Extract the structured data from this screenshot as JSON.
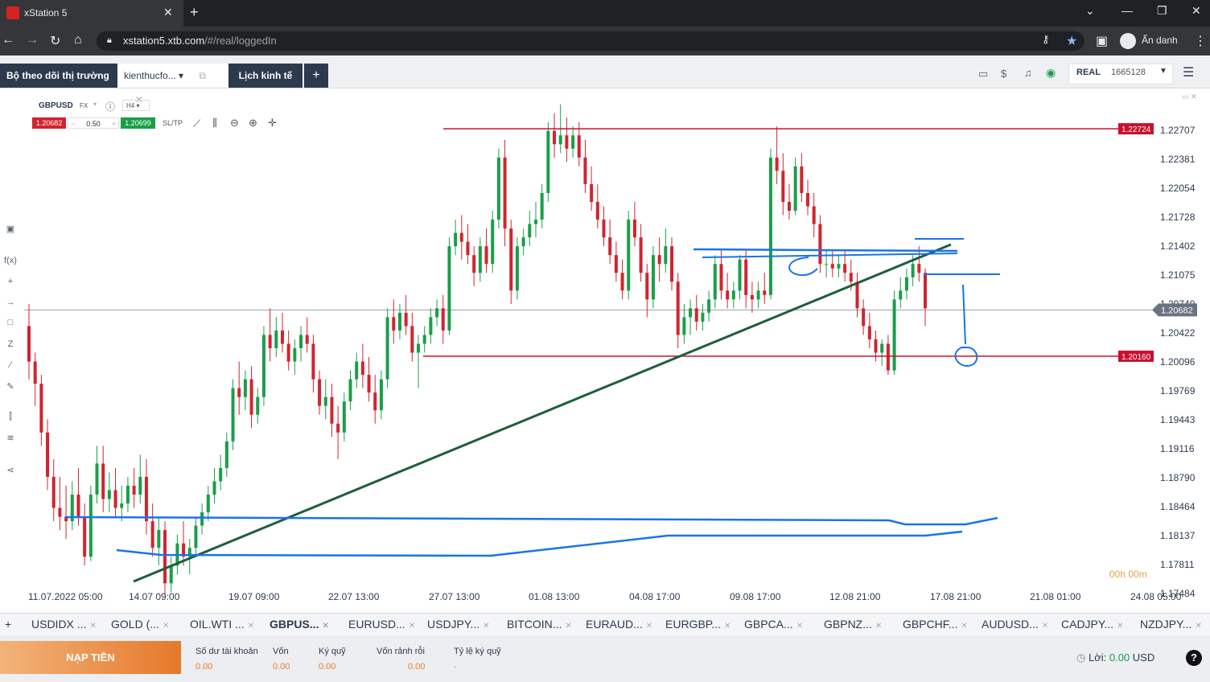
{
  "browser": {
    "tab_title": "xStation 5",
    "url_host": "xstation5.xtb.com",
    "url_path": "/#/real/loggedIn",
    "profile_label": "Ẩn danh"
  },
  "app": {
    "tabs": {
      "watchlist": "Bộ theo dõi thị trường",
      "workspace": "kienthucfo...",
      "calendar": "Lịch kinh tế"
    },
    "account": {
      "type": "REAL",
      "number": "1665128"
    }
  },
  "chart_header": {
    "symbol": "GBPUSD",
    "market": "FX",
    "timeframe": "H4",
    "sell_price": "1.20682",
    "volume": "0.50",
    "buy_price": "1.20699",
    "sltp_label": "SL/TP"
  },
  "chart_data": {
    "type": "candlestick",
    "price_axis": [
      "1.22707",
      "1.22381",
      "1.22054",
      "1.21728",
      "1.21402",
      "1.21075",
      "1.20749",
      "1.20422",
      "1.20096",
      "1.19769",
      "1.19443",
      "1.19116",
      "1.18790",
      "1.18464",
      "1.18137",
      "1.17811",
      "1.17484"
    ],
    "time_axis": [
      "11.07.2022 05:00",
      "14.07 09:00",
      "19.07 09:00",
      "22.07 13:00",
      "27.07 13:00",
      "01.08 13:00",
      "04.08 17:00",
      "09.08 17:00",
      "12.08 21:00",
      "17.08 21:00",
      "21.08 01:00",
      "24.08 05:00"
    ],
    "current_price": "1.20682",
    "horizontal_lines": [
      {
        "label": "1.22724",
        "color": "#c8102e"
      },
      {
        "label": "1.20160",
        "color": "#c8102e"
      }
    ],
    "countdown": "00h 00m",
    "colors": {
      "up": "#1a9e4a",
      "down": "#d1242f",
      "trendline": "#1d5e3c",
      "drawing": "#1a73e8"
    },
    "candles": [
      [
        1.205,
        1.2075,
        1.201,
        1.199
      ],
      [
        1.201,
        1.202,
        1.1985,
        1.196
      ],
      [
        1.1985,
        1.1995,
        1.193,
        1.1915
      ],
      [
        1.193,
        1.1945,
        1.188,
        1.1865
      ],
      [
        1.188,
        1.19,
        1.1845,
        1.183
      ],
      [
        1.1845,
        1.188,
        1.1835,
        1.182
      ],
      [
        1.1835,
        1.187,
        1.183,
        1.181
      ],
      [
        1.183,
        1.1875,
        1.186,
        1.182
      ],
      [
        1.186,
        1.189,
        1.1835,
        1.1825
      ],
      [
        1.1835,
        1.185,
        1.179,
        1.178
      ],
      [
        1.179,
        1.187,
        1.186,
        1.1785
      ],
      [
        1.186,
        1.1915,
        1.1895,
        1.185
      ],
      [
        1.1895,
        1.1915,
        1.1855,
        1.184
      ],
      [
        1.1855,
        1.1885,
        1.1865,
        1.184
      ],
      [
        1.1865,
        1.189,
        1.1845,
        1.1835
      ],
      [
        1.1845,
        1.187,
        1.185,
        1.183
      ],
      [
        1.185,
        1.188,
        1.187,
        1.184
      ],
      [
        1.187,
        1.189,
        1.186,
        1.1845
      ],
      [
        1.186,
        1.1905,
        1.188,
        1.185
      ],
      [
        1.188,
        1.19,
        1.183,
        1.1815
      ],
      [
        1.183,
        1.185,
        1.18,
        1.179
      ],
      [
        1.18,
        1.1835,
        1.182,
        1.178
      ],
      [
        1.182,
        1.183,
        1.176,
        1.1745
      ],
      [
        1.176,
        1.179,
        1.178,
        1.175
      ],
      [
        1.178,
        1.1815,
        1.1805,
        1.177
      ],
      [
        1.1805,
        1.183,
        1.179,
        1.178
      ],
      [
        1.179,
        1.181,
        1.18,
        1.177
      ],
      [
        1.18,
        1.1835,
        1.1825,
        1.179
      ],
      [
        1.1825,
        1.185,
        1.184,
        1.1815
      ],
      [
        1.184,
        1.187,
        1.186,
        1.183
      ],
      [
        1.186,
        1.189,
        1.1875,
        1.185
      ],
      [
        1.1875,
        1.1905,
        1.189,
        1.1865
      ],
      [
        1.189,
        1.193,
        1.192,
        1.188
      ],
      [
        1.192,
        1.199,
        1.198,
        1.191
      ],
      [
        1.198,
        1.201,
        1.197,
        1.195
      ],
      [
        1.197,
        1.2,
        1.199,
        1.1955
      ],
      [
        1.199,
        1.2005,
        1.195,
        1.1935
      ],
      [
        1.195,
        1.198,
        1.197,
        1.194
      ],
      [
        1.197,
        1.205,
        1.204,
        1.196
      ],
      [
        1.204,
        1.207,
        1.2025,
        1.201
      ],
      [
        1.2025,
        1.206,
        1.2045,
        1.2015
      ],
      [
        1.2045,
        1.2065,
        1.203,
        1.202
      ],
      [
        1.203,
        1.2045,
        1.201,
        1.2
      ],
      [
        1.201,
        1.2035,
        1.2025,
        1.1995
      ],
      [
        1.2025,
        1.205,
        1.204,
        1.201
      ],
      [
        1.204,
        1.206,
        1.203,
        1.202
      ],
      [
        1.203,
        1.204,
        1.199,
        1.1975
      ],
      [
        1.199,
        1.2,
        1.196,
        1.195
      ],
      [
        1.196,
        1.199,
        1.197,
        1.1945
      ],
      [
        1.197,
        1.1985,
        1.194,
        1.1925
      ],
      [
        1.194,
        1.196,
        1.193,
        1.19
      ],
      [
        1.193,
        1.1975,
        1.1965,
        1.192
      ],
      [
        1.1965,
        1.2,
        1.199,
        1.1955
      ],
      [
        1.199,
        1.202,
        1.201,
        1.198
      ],
      [
        1.201,
        1.203,
        1.1995,
        1.198
      ],
      [
        1.1995,
        1.2015,
        1.1975,
        1.1965
      ],
      [
        1.1975,
        1.1995,
        1.1955,
        1.194
      ],
      [
        1.1955,
        1.2,
        1.199,
        1.1945
      ],
      [
        1.199,
        1.207,
        1.206,
        1.198
      ],
      [
        1.206,
        1.208,
        1.2045,
        1.203
      ],
      [
        1.2045,
        1.2075,
        1.2065,
        1.2035
      ],
      [
        1.2065,
        1.2085,
        1.205,
        1.204
      ],
      [
        1.205,
        1.2065,
        1.202,
        1.201
      ],
      [
        1.202,
        1.204,
        1.203,
        1.198
      ],
      [
        1.203,
        1.205,
        1.204,
        1.202
      ],
      [
        1.204,
        1.207,
        1.206,
        1.203
      ],
      [
        1.206,
        1.208,
        1.207,
        1.205
      ],
      [
        1.207,
        1.2085,
        1.2045,
        1.203
      ],
      [
        1.2045,
        1.215,
        1.214,
        1.204
      ],
      [
        1.214,
        1.217,
        1.2155,
        1.213
      ],
      [
        1.2155,
        1.2175,
        1.2145,
        1.2125
      ],
      [
        1.2145,
        1.2165,
        1.213,
        1.212
      ],
      [
        1.213,
        1.214,
        1.211,
        1.2095
      ],
      [
        1.211,
        1.215,
        1.214,
        1.21
      ],
      [
        1.214,
        1.216,
        1.212,
        1.211
      ],
      [
        1.212,
        1.218,
        1.217,
        1.211
      ],
      [
        1.217,
        1.225,
        1.224,
        1.216
      ],
      [
        1.224,
        1.226,
        1.216,
        1.214
      ],
      [
        1.216,
        1.217,
        1.209,
        1.2075
      ],
      [
        1.209,
        1.215,
        1.214,
        1.208
      ],
      [
        1.214,
        1.216,
        1.215,
        1.213
      ],
      [
        1.215,
        1.218,
        1.2165,
        1.214
      ],
      [
        1.2165,
        1.219,
        1.217,
        1.215
      ],
      [
        1.217,
        1.221,
        1.22,
        1.216
      ],
      [
        1.22,
        1.228,
        1.227,
        1.219
      ],
      [
        1.227,
        1.229,
        1.2255,
        1.224
      ],
      [
        1.2255,
        1.23,
        1.2265,
        1.2245
      ],
      [
        1.2265,
        1.2285,
        1.225,
        1.2235
      ],
      [
        1.225,
        1.2275,
        1.2265,
        1.224
      ],
      [
        1.2265,
        1.228,
        1.224,
        1.223
      ],
      [
        1.224,
        1.226,
        1.221,
        1.22
      ],
      [
        1.221,
        1.223,
        1.219,
        1.218
      ],
      [
        1.219,
        1.221,
        1.217,
        1.216
      ],
      [
        1.217,
        1.2185,
        1.215,
        1.214
      ],
      [
        1.215,
        1.217,
        1.213,
        1.212
      ],
      [
        1.213,
        1.2145,
        1.211,
        1.21
      ],
      [
        1.211,
        1.2125,
        1.209,
        1.208
      ],
      [
        1.209,
        1.218,
        1.217,
        1.208
      ],
      [
        1.217,
        1.219,
        1.215,
        1.214
      ],
      [
        1.215,
        1.2165,
        1.211,
        1.21
      ],
      [
        1.211,
        1.212,
        1.208,
        1.206
      ],
      [
        1.208,
        1.214,
        1.213,
        1.207
      ],
      [
        1.213,
        1.215,
        1.212,
        1.21
      ],
      [
        1.212,
        1.216,
        1.214,
        1.211
      ],
      [
        1.214,
        1.215,
        1.21,
        1.209
      ],
      [
        1.21,
        1.211,
        1.204,
        1.2025
      ],
      [
        1.204,
        1.2075,
        1.206,
        1.203
      ],
      [
        1.206,
        1.208,
        1.207,
        1.204
      ],
      [
        1.207,
        1.2085,
        1.2055,
        1.2045
      ],
      [
        1.2055,
        1.2075,
        1.2065,
        1.2045
      ],
      [
        1.2065,
        1.209,
        1.208,
        1.2055
      ],
      [
        1.208,
        1.213,
        1.212,
        1.207
      ],
      [
        1.212,
        1.2135,
        1.209,
        1.208
      ],
      [
        1.209,
        1.211,
        1.208,
        1.207
      ],
      [
        1.208,
        1.21,
        1.209,
        1.207
      ],
      [
        1.209,
        1.213,
        1.2125,
        1.208
      ],
      [
        1.2125,
        1.2135,
        1.2085,
        1.207
      ],
      [
        1.2085,
        1.21,
        1.208,
        1.2065
      ],
      [
        1.208,
        1.21,
        1.209,
        1.207
      ],
      [
        1.209,
        1.211,
        1.2085,
        1.2075
      ],
      [
        1.2085,
        1.225,
        1.224,
        1.208
      ],
      [
        1.224,
        1.2275,
        1.2225,
        1.221
      ],
      [
        1.2225,
        1.2245,
        1.219,
        1.2175
      ],
      [
        1.219,
        1.221,
        1.218,
        1.217
      ],
      [
        1.218,
        1.224,
        1.223,
        1.2175
      ],
      [
        1.223,
        1.2245,
        1.22,
        1.219
      ],
      [
        1.22,
        1.2215,
        1.2185,
        1.2175
      ],
      [
        1.2185,
        1.22,
        1.2165,
        1.215
      ],
      [
        1.2165,
        1.2175,
        1.212,
        1.211
      ],
      [
        1.212,
        1.2135,
        1.212,
        1.2105
      ],
      [
        1.212,
        1.2135,
        1.2115,
        1.2105
      ],
      [
        1.2115,
        1.213,
        1.212,
        1.2105
      ],
      [
        1.212,
        1.2135,
        1.211,
        1.21
      ],
      [
        1.211,
        1.2125,
        1.21,
        1.209
      ],
      [
        1.21,
        1.211,
        1.207,
        1.206
      ],
      [
        1.207,
        1.208,
        1.205,
        1.204
      ],
      [
        1.205,
        1.2065,
        1.2035,
        1.2025
      ],
      [
        1.2035,
        1.2045,
        1.202,
        1.201
      ],
      [
        1.202,
        1.2035,
        1.203,
        1.2005
      ],
      [
        1.203,
        1.204,
        1.2,
        1.1995
      ],
      [
        1.2,
        1.209,
        1.208,
        1.1995
      ],
      [
        1.208,
        1.2105,
        1.209,
        1.207
      ],
      [
        1.209,
        1.2115,
        1.2105,
        1.208
      ],
      [
        1.2105,
        1.213,
        1.212,
        1.2095
      ],
      [
        1.212,
        1.214,
        1.211,
        1.21
      ],
      [
        1.211,
        1.2115,
        1.207,
        1.205
      ]
    ]
  },
  "instruments": [
    {
      "label": "USDIDX ...",
      "active": false
    },
    {
      "label": "GOLD (...",
      "active": false
    },
    {
      "label": "OIL.WTI ...",
      "active": false
    },
    {
      "label": "GBPUS...",
      "active": true
    },
    {
      "label": "EURUSD...",
      "active": false
    },
    {
      "label": "USDJPY...",
      "active": false
    },
    {
      "label": "BITCOIN...",
      "active": false
    },
    {
      "label": "EURAUD...",
      "active": false
    },
    {
      "label": "EURGBP...",
      "active": false
    },
    {
      "label": "GBPCA...",
      "active": false
    },
    {
      "label": "GBPNZ...",
      "active": false
    },
    {
      "label": "GBPCHF...",
      "active": false
    },
    {
      "label": "AUDUSD...",
      "active": false
    },
    {
      "label": "CADJPY...",
      "active": false
    },
    {
      "label": "NZDJPY...",
      "active": false
    }
  ],
  "footer": {
    "deposit": "NẠP TIỀN",
    "stats": [
      {
        "label": "Số dư tài khoản",
        "value": "0.00"
      },
      {
        "label": "Vốn",
        "value": "0.00"
      },
      {
        "label": "Ký quỹ",
        "value": "0.00"
      },
      {
        "label": "Vốn rảnh rỗi",
        "value": "0.00"
      },
      {
        "label": "Tỷ lệ ký quỹ",
        "value": "-"
      }
    ],
    "profit_label": "Lời:",
    "profit_value": "0.00",
    "profit_currency": "USD"
  }
}
